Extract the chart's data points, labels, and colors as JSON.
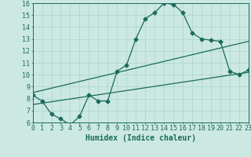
{
  "line1_x": [
    0,
    1,
    2,
    3,
    4,
    5,
    6,
    7,
    8,
    9,
    10,
    11,
    12,
    13,
    14,
    15,
    16,
    17,
    18,
    19,
    20,
    21,
    22,
    23
  ],
  "line1_y": [
    8.3,
    7.8,
    6.7,
    6.3,
    5.8,
    6.5,
    8.3,
    7.8,
    7.8,
    10.3,
    10.8,
    13.0,
    14.7,
    15.2,
    16.0,
    15.9,
    15.2,
    13.5,
    13.0,
    12.9,
    12.8,
    10.3,
    10.0,
    10.4
  ],
  "line2_x": [
    0,
    23
  ],
  "line2_y": [
    7.5,
    10.2
  ],
  "line3_x": [
    0,
    23
  ],
  "line3_y": [
    8.5,
    12.8
  ],
  "color": "#1a6b5a",
  "bg_color": "#cce8e2",
  "xlabel": "Humidex (Indice chaleur)",
  "ylim": [
    6,
    16
  ],
  "xlim": [
    0,
    23
  ],
  "yticks": [
    6,
    7,
    8,
    9,
    10,
    11,
    12,
    13,
    14,
    15,
    16
  ],
  "xticks": [
    0,
    1,
    2,
    3,
    4,
    5,
    6,
    7,
    8,
    9,
    10,
    11,
    12,
    13,
    14,
    15,
    16,
    17,
    18,
    19,
    20,
    21,
    22,
    23
  ],
  "grid_color": "#aad4ce",
  "marker_size": 2.5,
  "line_width": 0.9,
  "xlabel_fontsize": 7,
  "tick_fontsize": 6
}
